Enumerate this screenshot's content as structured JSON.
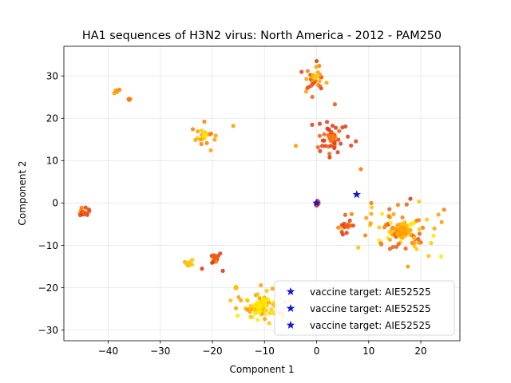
{
  "chart_data": {
    "type": "scatter",
    "title": "HA1 sequences of H3N2 virus: North America - 2012 - PAM250",
    "xlabel": "Component 1",
    "ylabel": "Component 2",
    "xlim": [
      -48.5,
      27.5
    ],
    "ylim": [
      -32.5,
      37
    ],
    "xticks": [
      -40,
      -30,
      -20,
      -10,
      0,
      10,
      20
    ],
    "yticks": [
      -30,
      -20,
      -10,
      0,
      10,
      20,
      30
    ],
    "grid": true,
    "legend_position": "lower-right",
    "colors": {
      "yellow": "#ffe800",
      "gold": "#ffc400",
      "orange": "#ff9f00",
      "dark_orange": "#ff7a00",
      "red_orange": "#f25a12",
      "red": "#e43a12",
      "vaccine": "#1515dd"
    },
    "clusters": [
      {
        "label": "c1",
        "center": [
          -0.3,
          29.7
        ],
        "spread": 2.8,
        "n": 28,
        "core_color": "gold",
        "palette": [
          "red",
          "red_orange",
          "dark_orange",
          "orange"
        ]
      },
      {
        "label": "c2",
        "center": [
          3,
          15.5
        ],
        "spread": 3.0,
        "n": 40,
        "core_color": "dark_orange",
        "palette": [
          "red",
          "red_orange",
          "red"
        ]
      },
      {
        "label": "c3",
        "center": [
          -21.5,
          16
        ],
        "spread": 2.2,
        "n": 22,
        "core_color": "yellow",
        "palette": [
          "gold",
          "orange",
          "dark_orange"
        ]
      },
      {
        "label": "c4",
        "center": [
          -38.5,
          26.5
        ],
        "spread": 0.8,
        "n": 4,
        "core_color": "orange",
        "palette": [
          "orange",
          "dark_orange"
        ]
      },
      {
        "label": "c5",
        "center": [
          -36,
          24.5
        ],
        "spread": 0.3,
        "n": 2,
        "core_color": "dark_orange",
        "palette": [
          "dark_orange"
        ]
      },
      {
        "label": "c6",
        "center": [
          -44.5,
          -2.5
        ],
        "spread": 1.0,
        "n": 16,
        "core_color": "red_orange",
        "palette": [
          "red_orange",
          "dark_orange",
          "red"
        ]
      },
      {
        "label": "c7",
        "center": [
          0,
          0
        ],
        "spread": 0.4,
        "n": 10,
        "core_color": "red_orange",
        "palette": [
          "red",
          "red_orange"
        ]
      },
      {
        "label": "c8",
        "center": [
          16.5,
          -6.5
        ],
        "spread": 4.5,
        "n": 110,
        "core_color": "orange",
        "palette": [
          "gold",
          "orange",
          "dark_orange",
          "yellow",
          "red_orange"
        ]
      },
      {
        "label": "c9",
        "center": [
          6,
          -5.5
        ],
        "spread": 1.8,
        "n": 14,
        "core_color": "red_orange",
        "palette": [
          "red_orange",
          "red",
          "dark_orange"
        ]
      },
      {
        "label": "c10",
        "center": [
          -11,
          -24.5
        ],
        "spread": 3.5,
        "n": 80,
        "core_color": "yellow",
        "palette": [
          "yellow",
          "gold",
          "orange"
        ]
      },
      {
        "label": "c11",
        "center": [
          -24.5,
          -14.5
        ],
        "spread": 0.8,
        "n": 10,
        "core_color": "gold",
        "palette": [
          "gold",
          "orange"
        ]
      },
      {
        "label": "c12",
        "center": [
          -19.5,
          -12.5
        ],
        "spread": 1.3,
        "n": 14,
        "core_color": "red_orange",
        "palette": [
          "red",
          "red_orange",
          "dark_orange"
        ]
      },
      {
        "label": "c13",
        "center": [
          -15.5,
          -20
        ],
        "spread": 0.4,
        "n": 3,
        "core_color": "gold",
        "palette": [
          "gold",
          "orange"
        ]
      }
    ],
    "extra_points": [
      {
        "x": 0,
        "y": 33.5,
        "c": "red"
      },
      {
        "x": 3.5,
        "y": 23.3,
        "c": "red_orange"
      },
      {
        "x": -4,
        "y": 13.5,
        "c": "orange"
      },
      {
        "x": -16,
        "y": 18.2,
        "c": "orange"
      },
      {
        "x": 8.5,
        "y": 8,
        "c": "dark_orange"
      },
      {
        "x": 10.5,
        "y": 0,
        "c": "dark_orange"
      },
      {
        "x": 5.5,
        "y": -2.8,
        "c": "red_orange"
      },
      {
        "x": 18,
        "y": 1,
        "c": "red"
      },
      {
        "x": 24,
        "y": -4.5,
        "c": "orange"
      },
      {
        "x": 8,
        "y": -10.5,
        "c": "gold"
      },
      {
        "x": -18,
        "y": -16,
        "c": "red"
      },
      {
        "x": -22,
        "y": -15.5,
        "c": "red"
      },
      {
        "x": -16.5,
        "y": -23,
        "c": "gold"
      },
      {
        "x": 17.5,
        "y": -15,
        "c": "orange"
      },
      {
        "x": 21.5,
        "y": -12.5,
        "c": "gold"
      },
      {
        "x": -2,
        "y": -29,
        "c": "gold"
      },
      {
        "x": 2.5,
        "y": 10.8,
        "c": "red"
      }
    ],
    "vaccine_points": [
      {
        "x": 0,
        "y": 0
      },
      {
        "x": 7.7,
        "y": 2
      }
    ],
    "legend": [
      {
        "label": "vaccine target: AIE52525",
        "marker": "star",
        "color": "vaccine"
      },
      {
        "label": "vaccine target: AIE52525",
        "marker": "star",
        "color": "vaccine"
      },
      {
        "label": "vaccine target: AIE52525",
        "marker": "star",
        "color": "vaccine"
      }
    ]
  }
}
